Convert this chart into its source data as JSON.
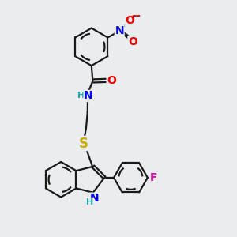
{
  "bg_color": "#eaecee",
  "bond_color": "#1a1a1a",
  "bond_width": 1.6,
  "atom_colors": {
    "N": "#0000ee",
    "O": "#ee0000",
    "S": "#ccaa00",
    "F": "#dd00aa",
    "H": "#22aaaa",
    "C": "#1a1a1a"
  },
  "xlim": [
    0,
    10
  ],
  "ylim": [
    0,
    10
  ]
}
